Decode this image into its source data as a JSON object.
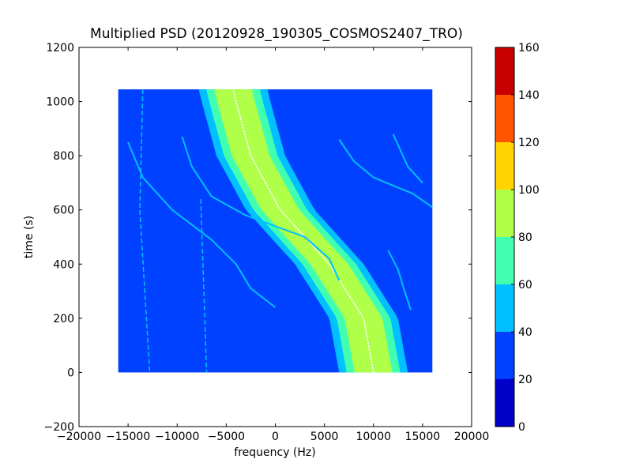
{
  "chart_data": {
    "type": "heatmap",
    "title": "Multiplied PSD (20120928_190305_COSMOS2407_TRO)",
    "xlabel": "frequency (Hz)",
    "ylabel": "time (s)",
    "xlim": [
      -20000,
      20000
    ],
    "ylim": [
      -200,
      1200
    ],
    "x_ticks": [
      -20000,
      -15000,
      -10000,
      -5000,
      0,
      5000,
      10000,
      15000,
      20000
    ],
    "x_tick_labels": [
      "−20000",
      "−15000",
      "−10000",
      "−5000",
      "0",
      "5000",
      "10000",
      "15000",
      "20000"
    ],
    "y_ticks": [
      -200,
      0,
      200,
      400,
      600,
      800,
      1000,
      1200
    ],
    "y_tick_labels": [
      "−200",
      "0",
      "200",
      "400",
      "600",
      "800",
      "1000",
      "1200"
    ],
    "data_extent": {
      "x": [
        -16000,
        16000
      ],
      "y": [
        0,
        1045
      ]
    },
    "background_level": 30,
    "colorbar": {
      "levels": [
        0,
        20,
        40,
        60,
        80,
        100,
        120,
        140,
        160
      ],
      "tick_labels": [
        "0",
        "20",
        "40",
        "60",
        "80",
        "100",
        "120",
        "140",
        "160"
      ],
      "colors": [
        "#0000c8",
        "#0040ff",
        "#00c0ff",
        "#40ffb0",
        "#b0ff48",
        "#ffd200",
        "#ff5400",
        "#c80000"
      ]
    },
    "features": [
      {
        "name": "main-band",
        "center_freq_at_t": {
          "0": 10000,
          "200": 9000,
          "400": 5500,
          "600": 500,
          "800": -2500,
          "1000": -4000,
          "1045": -4300
        },
        "peak_level": 90,
        "half_width_hz": 3500
      },
      {
        "name": "ridge-1",
        "points": [
          [
            -15000,
            850
          ],
          [
            -13500,
            720
          ],
          [
            -10500,
            600
          ],
          [
            -6500,
            490
          ],
          [
            -4000,
            400
          ],
          [
            -2500,
            310
          ],
          [
            0,
            240
          ]
        ],
        "level": 50
      },
      {
        "name": "ridge-2",
        "points": [
          [
            -9500,
            870
          ],
          [
            -8500,
            760
          ],
          [
            -6500,
            650
          ],
          [
            -3000,
            580
          ],
          [
            0,
            540
          ],
          [
            3000,
            500
          ],
          [
            5500,
            420
          ],
          [
            6500,
            340
          ]
        ],
        "level": 50
      },
      {
        "name": "ridge-3",
        "points": [
          [
            6500,
            860
          ],
          [
            8000,
            780
          ],
          [
            10000,
            720
          ],
          [
            12000,
            690
          ],
          [
            14000,
            660
          ],
          [
            16000,
            610
          ]
        ],
        "level": 50
      },
      {
        "name": "ridge-4",
        "points": [
          [
            11500,
            450
          ],
          [
            12500,
            380
          ],
          [
            13000,
            320
          ],
          [
            13800,
            230
          ]
        ],
        "level": 50
      },
      {
        "name": "ridge-5",
        "points": [
          [
            12000,
            880
          ],
          [
            13500,
            760
          ],
          [
            15000,
            700
          ]
        ],
        "level": 50
      },
      {
        "name": "vertical-line-1",
        "points": [
          [
            -13500,
            1045
          ],
          [
            -13800,
            600
          ],
          [
            -12800,
            0
          ]
        ],
        "level": 45
      },
      {
        "name": "vertical-line-2",
        "points": [
          [
            -7600,
            640
          ],
          [
            -7000,
            0
          ]
        ],
        "level": 45
      }
    ]
  }
}
